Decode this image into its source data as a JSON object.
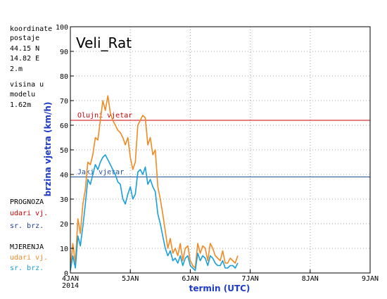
{
  "station": {
    "name": "Veli_Rat",
    "info_lines": [
      "koordinate",
      "postaje",
      "44.15 N",
      "14.82 E",
      "2.m",
      "visina u",
      "modelu",
      "1.62m"
    ]
  },
  "legend": {
    "forecast_heading": "PROGNOZA",
    "forecast_gust": "udari vj.",
    "forecast_mean": "sr. brz.",
    "measured_heading": "MJERENJA",
    "measured_gust": "udari vj.",
    "measured_mean": "sr. brz."
  },
  "colors": {
    "forecast_gust": "#cc0000",
    "forecast_mean": "#1f3c99",
    "measured_gust": "#f08a24",
    "measured_mean": "#1a9fd9",
    "stormy_line": "#cc0000",
    "strong_line": "#1f4fa0",
    "grid": "#9aa8a8"
  },
  "chart_data": {
    "type": "line",
    "ylabel": "brzina vjetra (km/h)",
    "xlabel": "termin (UTC)",
    "ylim": [
      0,
      100
    ],
    "y_ticks": [
      0,
      10,
      20,
      30,
      40,
      50,
      60,
      70,
      80,
      90,
      100
    ],
    "xlim": [
      0,
      120
    ],
    "x_ticks": [
      {
        "x": 0,
        "label": "4JAN",
        "sublabel": "2014"
      },
      {
        "x": 24,
        "label": "5JAN"
      },
      {
        "x": 48,
        "label": "6JAN"
      },
      {
        "x": 72,
        "label": "7JAN"
      },
      {
        "x": 96,
        "label": "8JAN"
      },
      {
        "x": 120,
        "label": "9JAN"
      }
    ],
    "grid": "dotted",
    "thresholds": [
      {
        "name": "Olujni vjetar",
        "value": 62,
        "color": "#cc0000"
      },
      {
        "name": "Jaki vjetar",
        "value": 39,
        "color": "#1f4fa0"
      }
    ],
    "series": [
      {
        "name": "MJERENJA udari vj.",
        "color": "#f08a24",
        "x": [
          0,
          1,
          2,
          3,
          4,
          5,
          6,
          7,
          8,
          9,
          10,
          11,
          12,
          13,
          14,
          15,
          16,
          17,
          18,
          19,
          20,
          21,
          22,
          23,
          24,
          25,
          26,
          27,
          28,
          29,
          30,
          31,
          32,
          33,
          34,
          35,
          36,
          37,
          38,
          39,
          40,
          41,
          42,
          43,
          44,
          45,
          46,
          47,
          48,
          49,
          50,
          51,
          52,
          53,
          54,
          55,
          56,
          57,
          58,
          59,
          60,
          61,
          62,
          63,
          64,
          65,
          66,
          67
        ],
        "y": [
          2,
          12,
          4,
          22,
          16,
          28,
          34,
          45,
          44,
          48,
          55,
          54,
          62,
          70,
          66,
          72,
          65,
          62,
          60,
          58,
          57,
          55,
          52,
          55,
          47,
          42,
          45,
          60,
          62,
          64,
          63,
          52,
          55,
          48,
          50,
          35,
          30,
          24,
          17,
          10,
          14,
          8,
          10,
          7,
          12,
          5,
          10,
          11,
          5,
          3,
          2,
          12,
          8,
          11,
          10,
          5,
          12,
          10,
          7,
          6,
          5,
          9,
          4,
          4,
          6,
          5,
          4,
          7
        ]
      },
      {
        "name": "MJERENJA sr. brz.",
        "color": "#1a9fd9",
        "x": [
          0,
          1,
          2,
          3,
          4,
          5,
          6,
          7,
          8,
          9,
          10,
          11,
          12,
          13,
          14,
          15,
          16,
          17,
          18,
          19,
          20,
          21,
          22,
          23,
          24,
          25,
          26,
          27,
          28,
          29,
          30,
          31,
          32,
          33,
          34,
          35,
          36,
          37,
          38,
          39,
          40,
          41,
          42,
          43,
          44,
          45,
          46,
          47,
          48,
          49,
          50,
          51,
          52,
          53,
          54,
          55,
          56,
          57,
          58,
          59,
          60,
          61,
          62,
          63,
          64,
          65,
          66,
          67
        ],
        "y": [
          1,
          7,
          2,
          15,
          11,
          19,
          28,
          38,
          36,
          40,
          44,
          42,
          45,
          47,
          48,
          46,
          44,
          42,
          40,
          37,
          36,
          30,
          28,
          32,
          35,
          30,
          32,
          41,
          42,
          40,
          43,
          36,
          38,
          35,
          33,
          24,
          20,
          15,
          10,
          7,
          9,
          5,
          6,
          4,
          7,
          3,
          6,
          7,
          3,
          2,
          1,
          8,
          5,
          7,
          6,
          3,
          7,
          6,
          4,
          3,
          3,
          5,
          2,
          2,
          3,
          3,
          2,
          4
        ]
      }
    ]
  }
}
